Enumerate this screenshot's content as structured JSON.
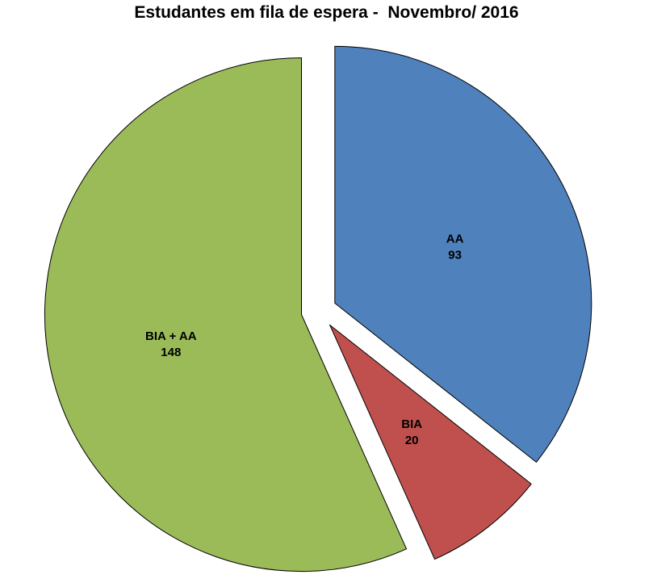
{
  "title": "Estudantes em fila de espera -  Novembro/ 2016",
  "chart_data": {
    "type": "pie",
    "title": "Estudantes em fila de espera -  Novembro/ 2016",
    "total": 261,
    "direction": "clockwise",
    "start_angle_deg": 0,
    "exploded": true,
    "background": "#FFFFFF",
    "border_color": "#000000",
    "slices": [
      {
        "label": "AA",
        "value": 93,
        "color": "#4F81BD"
      },
      {
        "label": "BIA",
        "value": 20,
        "color": "#C0504D"
      },
      {
        "label": "BIA + AA",
        "value": 148,
        "color": "#9BBB59"
      }
    ]
  }
}
